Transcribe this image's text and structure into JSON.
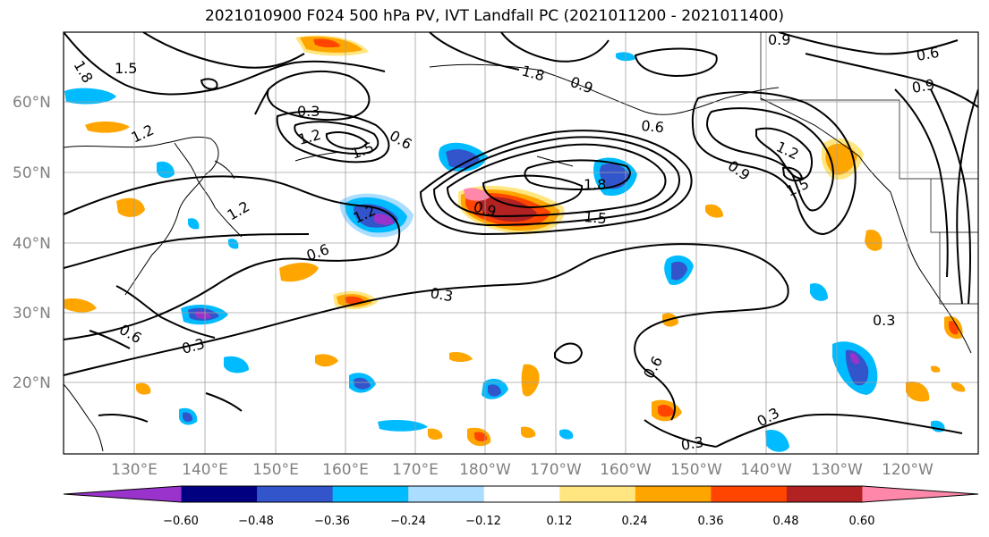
{
  "title": "2021010900 F024 500 hPa PV, IVT Landfall PC (2021011200 - 2021011400)",
  "lat_labels": [
    "60°N",
    "50°N",
    "40°N",
    "30°N",
    "20°N"
  ],
  "lon_labels": [
    "130°E",
    "140°E",
    "150°E",
    "160°E",
    "170°E",
    "180°W",
    "170°W",
    "160°W",
    "150°W",
    "140°W",
    "130°W",
    "120°W"
  ],
  "colorbar": {
    "colors": [
      "#9933cc",
      "#000080",
      "#3355cc",
      "#00bbff",
      "#aaddff",
      "#ffffff",
      "#ffe680",
      "#ffa500",
      "#ff4500",
      "#b22222",
      "#ff88aa"
    ],
    "ticks": [
      "−0.60",
      "−0.48",
      "−0.36",
      "−0.24",
      "−0.12",
      "0.12",
      "0.24",
      "0.36",
      "0.48",
      "0.60"
    ]
  },
  "contour_labels": [
    "1.5",
    "1.8",
    "1.2",
    "0.3",
    "1.2",
    "1.5",
    "0.6",
    "1.2",
    "0.9",
    "1.8",
    "1.5",
    "0.6",
    "0.3",
    "0.6",
    "0.3",
    "0.9",
    "1.2",
    "1.5",
    "0.9",
    "0.6",
    "0.3",
    "0.3",
    "0.6",
    "0.3",
    "0.9",
    "0.6",
    "0.9",
    "1.8",
    "1.2"
  ]
}
